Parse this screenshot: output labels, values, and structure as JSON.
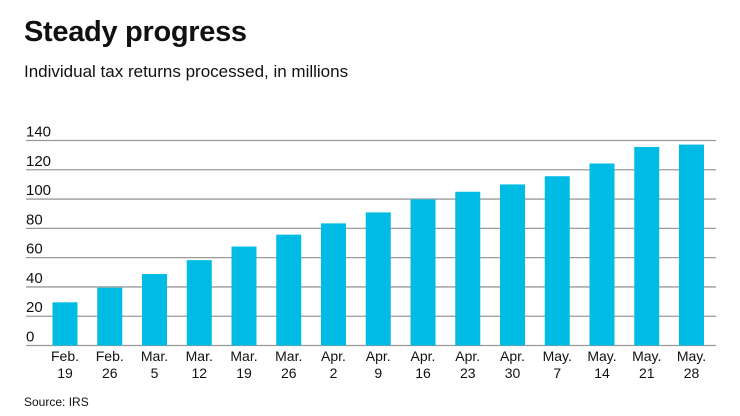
{
  "chart_data": {
    "type": "bar",
    "title": "Steady progress",
    "subtitle": "Individual tax returns processed, in millions",
    "source": "Source: IRS",
    "categories": [
      [
        "Feb.",
        "19"
      ],
      [
        "Feb.",
        "26"
      ],
      [
        "Mar.",
        "5"
      ],
      [
        "Mar.",
        "12"
      ],
      [
        "Mar.",
        "19"
      ],
      [
        "Mar.",
        "26"
      ],
      [
        "Apr.",
        "2"
      ],
      [
        "Apr.",
        "9"
      ],
      [
        "Apr.",
        "16"
      ],
      [
        "Apr.",
        "23"
      ],
      [
        "Apr.",
        "30"
      ],
      [
        "May.",
        "7"
      ],
      [
        "May.",
        "14"
      ],
      [
        "May.",
        "21"
      ],
      [
        "May.",
        "28"
      ]
    ],
    "values": [
      29.5,
      39.5,
      48.8,
      58.3,
      67.6,
      75.7,
      83.4,
      90.9,
      99.8,
      105.0,
      110.0,
      115.6,
      124.3,
      135.6,
      137.2
    ],
    "ylim": [
      0,
      140
    ],
    "yticks": [
      0,
      20,
      40,
      60,
      80,
      100,
      120,
      140
    ],
    "grid": true,
    "bar_color": "#00bce4",
    "grid_color": "#9a9a9a"
  }
}
